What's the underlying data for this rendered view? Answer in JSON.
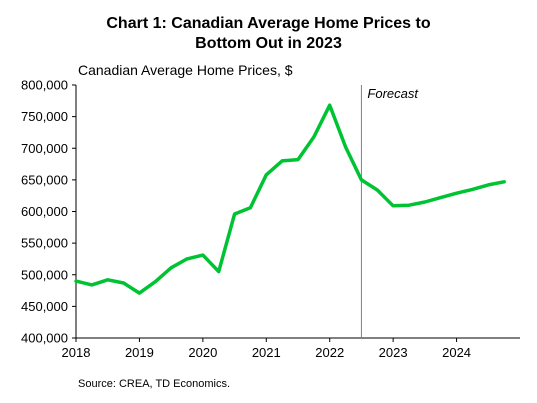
{
  "chart_data": {
    "type": "line",
    "title_line1": "Chart 1: Canadian Average Home Prices to",
    "title_line2": "Bottom Out in 2023",
    "ylabel": "Canadian Average Home Prices, $",
    "ylim": [
      400000,
      800000
    ],
    "yticks": [
      400000,
      450000,
      500000,
      550000,
      600000,
      650000,
      700000,
      750000,
      800000
    ],
    "ytick_labels": [
      "400,000",
      "450,000",
      "500,000",
      "550,000",
      "600,000",
      "650,000",
      "700,000",
      "750,000",
      "800,000"
    ],
    "xlim": [
      2018,
      2025
    ],
    "xticks": [
      2018,
      2019,
      2020,
      2021,
      2022,
      2023,
      2024
    ],
    "xtick_labels": [
      "2018",
      "2019",
      "2020",
      "2021",
      "2022",
      "2023",
      "2024"
    ],
    "forecast_start": 2022.5,
    "forecast_label": "Forecast",
    "source": "Source:  CREA,  TD Economics.",
    "grid": false,
    "color": "#00c333",
    "series": [
      {
        "x": [
          2018.0,
          2018.25,
          2018.5,
          2018.75,
          2019.0,
          2019.25,
          2019.5,
          2019.75,
          2020.0,
          2020.25,
          2020.5,
          2020.75,
          2021.0,
          2021.25,
          2021.5,
          2021.75,
          2022.0,
          2022.25,
          2022.5,
          2022.75,
          2023.0,
          2023.25,
          2023.5,
          2023.75,
          2024.0,
          2024.25,
          2024.5,
          2024.75
        ],
        "values": [
          490000,
          484000,
          492000,
          487000,
          471000,
          489000,
          511000,
          525000,
          531000,
          505000,
          596000,
          606000,
          658000,
          680000,
          682000,
          718000,
          768000,
          702000,
          650000,
          634000,
          609000,
          610000,
          615000,
          622000,
          629000,
          635000,
          642000,
          647000
        ]
      }
    ]
  }
}
